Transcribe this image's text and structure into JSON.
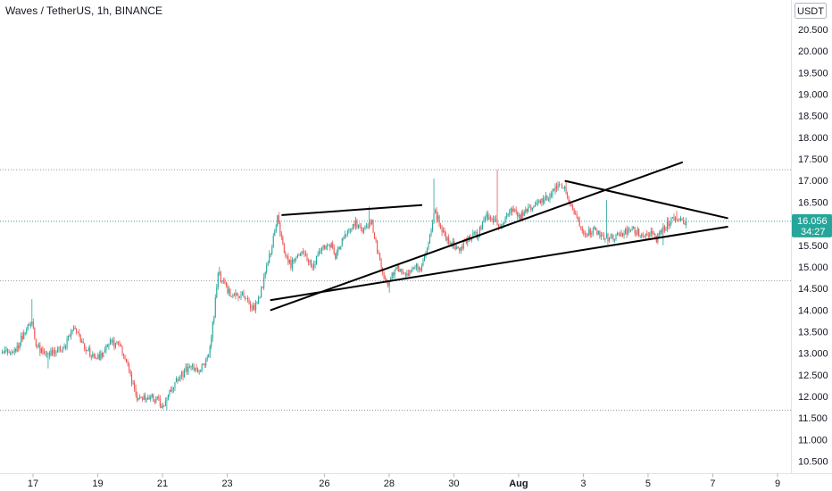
{
  "chart_data": {
    "type": "candlestick",
    "title": "Waves / TetherUS, 1h, BINANCE",
    "currency": "USDT",
    "y_ticks": [
      10.5,
      11.0,
      11.5,
      12.0,
      12.5,
      13.0,
      13.5,
      14.0,
      14.5,
      15.0,
      15.5,
      16.0,
      16.5,
      17.0,
      17.5,
      18.0,
      18.5,
      19.0,
      19.5,
      20.0,
      20.5
    ],
    "y_tick_labels": [
      "10.500",
      "11.000",
      "11.500",
      "12.000",
      "12.500",
      "13.000",
      "13.500",
      "14.000",
      "14.500",
      "15.000",
      "15.500",
      "16.000",
      "16.500",
      "17.000",
      "17.500",
      "18.000",
      "18.500",
      "19.000",
      "19.500",
      "20.000",
      "20.500"
    ],
    "x_tick_labels": [
      "17",
      "19",
      "21",
      "23",
      "26",
      "28",
      "30",
      "Aug",
      "3",
      "5",
      "7",
      "9"
    ],
    "x_ticks_day_index": [
      0,
      2,
      4,
      6,
      9,
      11,
      13,
      15,
      17,
      19,
      21,
      23
    ],
    "last_price": 16.056,
    "last_price_label": "16.056",
    "countdown_label": "34:27",
    "horizontal_levels": [
      17.25,
      16.056,
      14.68,
      11.68
    ],
    "trendlines": [
      {
        "from": [
          7.35,
          14.0
        ],
        "to": [
          20.05,
          17.42
        ]
      },
      {
        "from": [
          7.35,
          14.23
        ],
        "to": [
          21.45,
          15.93
        ]
      },
      {
        "from": [
          7.7,
          16.2
        ],
        "to": [
          12.0,
          16.43
        ]
      },
      {
        "from": [
          16.45,
          16.99
        ],
        "to": [
          21.45,
          16.13
        ]
      }
    ],
    "price_path": [
      [
        -0.95,
        13.0
      ],
      [
        -0.5,
        13.05
      ],
      [
        -0.2,
        13.55
      ],
      [
        0.0,
        13.8
      ],
      [
        0.15,
        13.15
      ],
      [
        0.4,
        13.0
      ],
      [
        0.7,
        13.05
      ],
      [
        1.0,
        13.1
      ],
      [
        1.3,
        13.65
      ],
      [
        1.6,
        13.2
      ],
      [
        1.9,
        12.9
      ],
      [
        2.2,
        12.95
      ],
      [
        2.4,
        13.3
      ],
      [
        2.7,
        13.15
      ],
      [
        2.9,
        12.9
      ],
      [
        3.1,
        12.3
      ],
      [
        3.3,
        11.9
      ],
      [
        3.6,
        12.0
      ],
      [
        3.9,
        11.9
      ],
      [
        4.1,
        11.75
      ],
      [
        4.3,
        12.2
      ],
      [
        4.6,
        12.45
      ],
      [
        4.9,
        12.75
      ],
      [
        5.15,
        12.6
      ],
      [
        5.35,
        12.75
      ],
      [
        5.5,
        13.1
      ],
      [
        5.65,
        14.0
      ],
      [
        5.75,
        14.85
      ],
      [
        5.95,
        14.6
      ],
      [
        6.2,
        14.3
      ],
      [
        6.5,
        14.4
      ],
      [
        6.7,
        14.15
      ],
      [
        6.9,
        14.05
      ],
      [
        7.05,
        14.3
      ],
      [
        7.2,
        14.8
      ],
      [
        7.4,
        15.4
      ],
      [
        7.6,
        16.15
      ],
      [
        7.8,
        15.3
      ],
      [
        8.0,
        15.05
      ],
      [
        8.3,
        15.3
      ],
      [
        8.55,
        15.15
      ],
      [
        8.7,
        14.95
      ],
      [
        8.9,
        15.4
      ],
      [
        9.2,
        15.55
      ],
      [
        9.4,
        15.25
      ],
      [
        9.7,
        15.8
      ],
      [
        10.0,
        16.0
      ],
      [
        10.2,
        15.8
      ],
      [
        10.5,
        16.05
      ],
      [
        10.65,
        15.5
      ],
      [
        10.8,
        14.9
      ],
      [
        11.0,
        14.6
      ],
      [
        11.2,
        14.9
      ],
      [
        11.4,
        15.0
      ],
      [
        11.6,
        14.75
      ],
      [
        11.8,
        15.05
      ],
      [
        12.0,
        14.9
      ],
      [
        12.2,
        15.3
      ],
      [
        12.45,
        16.3
      ],
      [
        12.7,
        15.8
      ],
      [
        12.9,
        15.6
      ],
      [
        13.2,
        15.4
      ],
      [
        13.5,
        15.7
      ],
      [
        13.8,
        15.75
      ],
      [
        14.0,
        16.2
      ],
      [
        14.2,
        16.1
      ],
      [
        14.5,
        15.95
      ],
      [
        14.8,
        16.3
      ],
      [
        15.1,
        16.15
      ],
      [
        15.4,
        16.35
      ],
      [
        15.7,
        16.5
      ],
      [
        15.95,
        16.6
      ],
      [
        16.25,
        16.85
      ],
      [
        16.5,
        16.8
      ],
      [
        16.7,
        16.35
      ],
      [
        16.9,
        16.05
      ],
      [
        17.1,
        15.8
      ],
      [
        17.4,
        15.85
      ],
      [
        17.7,
        15.7
      ],
      [
        18.0,
        15.65
      ],
      [
        18.3,
        15.8
      ],
      [
        18.6,
        15.85
      ],
      [
        18.9,
        15.75
      ],
      [
        19.1,
        15.8
      ],
      [
        19.3,
        15.65
      ],
      [
        19.55,
        15.9
      ],
      [
        19.8,
        16.15
      ],
      [
        20.0,
        16.05
      ],
      [
        20.2,
        16.056
      ]
    ],
    "wick_spikes": [
      [
        -0.05,
        14.25
      ],
      [
        5.75,
        15.0
      ],
      [
        7.6,
        16.2
      ],
      [
        10.4,
        16.4
      ],
      [
        12.4,
        17.05
      ],
      [
        14.35,
        17.25
      ],
      [
        16.45,
        16.99
      ],
      [
        17.7,
        16.55
      ],
      [
        19.9,
        16.3
      ]
    ],
    "wick_dips": [
      [
        0.45,
        12.65
      ],
      [
        4.15,
        11.68
      ],
      [
        11.0,
        14.4
      ],
      [
        13.2,
        15.3
      ],
      [
        19.45,
        15.5
      ]
    ]
  }
}
